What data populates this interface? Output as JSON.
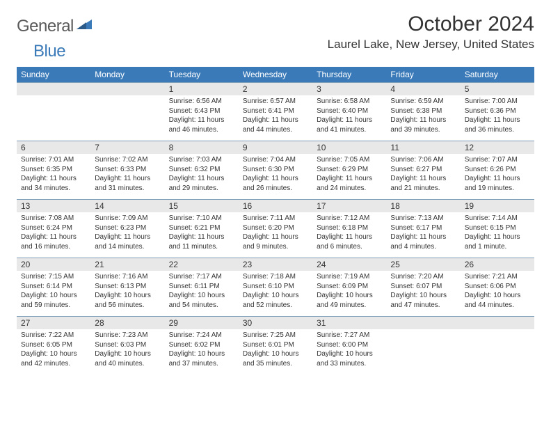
{
  "brand": {
    "name_part1": "General",
    "name_part2": "Blue"
  },
  "title": "October 2024",
  "location": "Laurel Lake, New Jersey, United States",
  "colors": {
    "header_bg": "#3a7ab8",
    "header_text": "#ffffff",
    "daynum_bg": "#e8e8e8",
    "daynum_border": "#7a9cb8",
    "body_bg": "#ffffff",
    "text": "#333333",
    "brand_gray": "#5a5a5a",
    "brand_blue": "#3a7ab8"
  },
  "weekdays": [
    "Sunday",
    "Monday",
    "Tuesday",
    "Wednesday",
    "Thursday",
    "Friday",
    "Saturday"
  ],
  "leading_blanks": 2,
  "days": [
    {
      "n": 1,
      "sunrise": "6:56 AM",
      "sunset": "6:43 PM",
      "daylight": "11 hours and 46 minutes."
    },
    {
      "n": 2,
      "sunrise": "6:57 AM",
      "sunset": "6:41 PM",
      "daylight": "11 hours and 44 minutes."
    },
    {
      "n": 3,
      "sunrise": "6:58 AM",
      "sunset": "6:40 PM",
      "daylight": "11 hours and 41 minutes."
    },
    {
      "n": 4,
      "sunrise": "6:59 AM",
      "sunset": "6:38 PM",
      "daylight": "11 hours and 39 minutes."
    },
    {
      "n": 5,
      "sunrise": "7:00 AM",
      "sunset": "6:36 PM",
      "daylight": "11 hours and 36 minutes."
    },
    {
      "n": 6,
      "sunrise": "7:01 AM",
      "sunset": "6:35 PM",
      "daylight": "11 hours and 34 minutes."
    },
    {
      "n": 7,
      "sunrise": "7:02 AM",
      "sunset": "6:33 PM",
      "daylight": "11 hours and 31 minutes."
    },
    {
      "n": 8,
      "sunrise": "7:03 AM",
      "sunset": "6:32 PM",
      "daylight": "11 hours and 29 minutes."
    },
    {
      "n": 9,
      "sunrise": "7:04 AM",
      "sunset": "6:30 PM",
      "daylight": "11 hours and 26 minutes."
    },
    {
      "n": 10,
      "sunrise": "7:05 AM",
      "sunset": "6:29 PM",
      "daylight": "11 hours and 24 minutes."
    },
    {
      "n": 11,
      "sunrise": "7:06 AM",
      "sunset": "6:27 PM",
      "daylight": "11 hours and 21 minutes."
    },
    {
      "n": 12,
      "sunrise": "7:07 AM",
      "sunset": "6:26 PM",
      "daylight": "11 hours and 19 minutes."
    },
    {
      "n": 13,
      "sunrise": "7:08 AM",
      "sunset": "6:24 PM",
      "daylight": "11 hours and 16 minutes."
    },
    {
      "n": 14,
      "sunrise": "7:09 AM",
      "sunset": "6:23 PM",
      "daylight": "11 hours and 14 minutes."
    },
    {
      "n": 15,
      "sunrise": "7:10 AM",
      "sunset": "6:21 PM",
      "daylight": "11 hours and 11 minutes."
    },
    {
      "n": 16,
      "sunrise": "7:11 AM",
      "sunset": "6:20 PM",
      "daylight": "11 hours and 9 minutes."
    },
    {
      "n": 17,
      "sunrise": "7:12 AM",
      "sunset": "6:18 PM",
      "daylight": "11 hours and 6 minutes."
    },
    {
      "n": 18,
      "sunrise": "7:13 AM",
      "sunset": "6:17 PM",
      "daylight": "11 hours and 4 minutes."
    },
    {
      "n": 19,
      "sunrise": "7:14 AM",
      "sunset": "6:15 PM",
      "daylight": "11 hours and 1 minute."
    },
    {
      "n": 20,
      "sunrise": "7:15 AM",
      "sunset": "6:14 PM",
      "daylight": "10 hours and 59 minutes."
    },
    {
      "n": 21,
      "sunrise": "7:16 AM",
      "sunset": "6:13 PM",
      "daylight": "10 hours and 56 minutes."
    },
    {
      "n": 22,
      "sunrise": "7:17 AM",
      "sunset": "6:11 PM",
      "daylight": "10 hours and 54 minutes."
    },
    {
      "n": 23,
      "sunrise": "7:18 AM",
      "sunset": "6:10 PM",
      "daylight": "10 hours and 52 minutes."
    },
    {
      "n": 24,
      "sunrise": "7:19 AM",
      "sunset": "6:09 PM",
      "daylight": "10 hours and 49 minutes."
    },
    {
      "n": 25,
      "sunrise": "7:20 AM",
      "sunset": "6:07 PM",
      "daylight": "10 hours and 47 minutes."
    },
    {
      "n": 26,
      "sunrise": "7:21 AM",
      "sunset": "6:06 PM",
      "daylight": "10 hours and 44 minutes."
    },
    {
      "n": 27,
      "sunrise": "7:22 AM",
      "sunset": "6:05 PM",
      "daylight": "10 hours and 42 minutes."
    },
    {
      "n": 28,
      "sunrise": "7:23 AM",
      "sunset": "6:03 PM",
      "daylight": "10 hours and 40 minutes."
    },
    {
      "n": 29,
      "sunrise": "7:24 AM",
      "sunset": "6:02 PM",
      "daylight": "10 hours and 37 minutes."
    },
    {
      "n": 30,
      "sunrise": "7:25 AM",
      "sunset": "6:01 PM",
      "daylight": "10 hours and 35 minutes."
    },
    {
      "n": 31,
      "sunrise": "7:27 AM",
      "sunset": "6:00 PM",
      "daylight": "10 hours and 33 minutes."
    }
  ],
  "labels": {
    "sunrise": "Sunrise:",
    "sunset": "Sunset:",
    "daylight": "Daylight:"
  }
}
